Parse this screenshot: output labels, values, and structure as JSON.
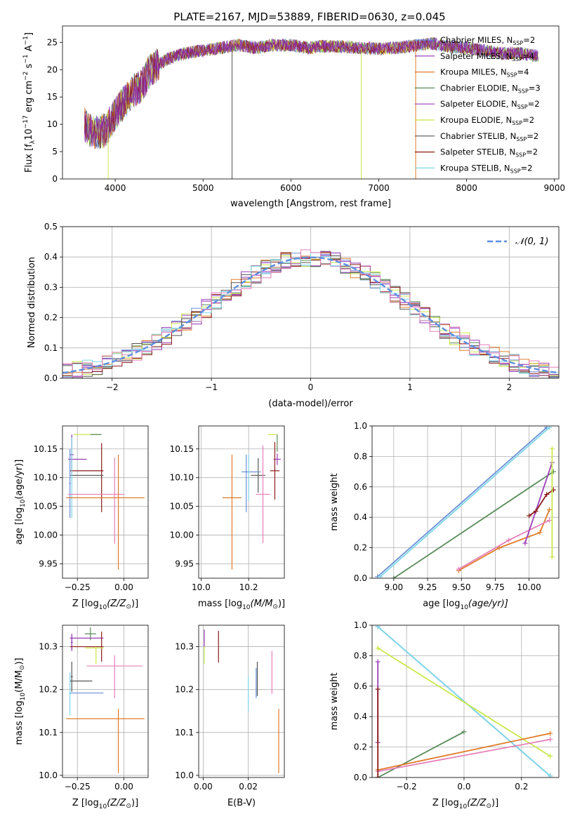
{
  "figure_title": "PLATE=2167, MJD=53889, FIBERID=0630, z=0.045",
  "colors": {
    "Chabrier MILES": "#6b8fd6",
    "Salpeter MILES": "#8c2db5",
    "Kroupa MILES": "#e07b2a",
    "Chabrier ELODIE": "#5a8a5a",
    "Salpeter ELODIE": "#9b3db8",
    "Kroupa ELODIE": "#c8e84a",
    "Chabrier STELIB": "#555555",
    "Salpeter STELIB": "#8b1a1a",
    "Kroupa STELIB": "#7fd7e8",
    "Pink": "#e67fb8",
    "Gaussian": "#5b8ee0"
  },
  "chart_data": [
    {
      "id": "spectrum",
      "type": "line",
      "title": "PLATE=2167, MJD=53889, FIBERID=0630, z=0.045",
      "xlabel": "wavelength [Angstrom, rest frame]",
      "ylabel_parts": [
        "Flux [f",
        "λ",
        "10",
        "−17",
        " erg cm",
        "−2",
        " s",
        "−1",
        " A",
        "−1",
        "]"
      ],
      "xlim": [
        3400,
        9050
      ],
      "ylim": [
        0,
        28
      ],
      "xticks": [
        4000,
        5000,
        6000,
        7000,
        8000,
        9000
      ],
      "yticks": [
        0,
        5,
        10,
        15,
        20,
        25
      ],
      "continuum_x": [
        3650,
        3700,
        3800,
        3900,
        4000,
        4100,
        4200,
        4300,
        4400,
        4500,
        4600,
        4800,
        5000,
        5200,
        5400,
        5600,
        5800,
        6000,
        6200,
        6400,
        6600,
        6800,
        7000,
        7200,
        7400,
        7600,
        7800,
        8000,
        8200,
        8400,
        8600,
        8800
      ],
      "continuum_y": [
        10,
        9,
        8.5,
        9,
        12,
        14,
        16,
        17,
        20,
        21,
        22,
        23,
        23.5,
        24,
        24.5,
        24,
        24.5,
        24.5,
        24,
        24.3,
        24.2,
        24,
        23.8,
        24,
        24.4,
        24.8,
        24.2,
        24,
        23.5,
        23,
        23,
        22.5
      ],
      "legend": [
        {
          "name": "Chabrier MILES, N",
          "sub": "SSP",
          "suffix": "=2",
          "color": "#6b8fd6"
        },
        {
          "name": "Salpeter MILES, N",
          "sub": "SSP",
          "suffix": "=4",
          "color": "#8c2db5"
        },
        {
          "name": "Kroupa MILES, N",
          "sub": "SSP",
          "suffix": "=4",
          "color": "#e07b2a"
        },
        {
          "name": "Chabrier ELODIE, N",
          "sub": "SSP",
          "suffix": "=3",
          "color": "#5a8a5a"
        },
        {
          "name": "Salpeter ELODIE, N",
          "sub": "SSP",
          "suffix": "=2",
          "color": "#9b3db8"
        },
        {
          "name": "Kroupa ELODIE, N",
          "sub": "SSP",
          "suffix": "=2",
          "color": "#c8e84a"
        },
        {
          "name": "Chabrier STELIB, N",
          "sub": "SSP",
          "suffix": "=2",
          "color": "#555555"
        },
        {
          "name": "Salpeter STELIB, N",
          "sub": "SSP",
          "suffix": "=2",
          "color": "#8b1a1a"
        },
        {
          "name": "Kroupa STELIB, N",
          "sub": "SSP",
          "suffix": "=2",
          "color": "#7fd7e8"
        }
      ],
      "spikes": [
        {
          "x": 5330,
          "y": 0,
          "color": "#555555"
        },
        {
          "x": 6800,
          "y": 0,
          "color": "#c8e84a"
        },
        {
          "x": 7420,
          "y": 0,
          "color": "#e07b2a"
        },
        {
          "x": 3920,
          "y": 0,
          "color": "#c8e84a"
        }
      ]
    },
    {
      "id": "residuals",
      "type": "step",
      "xlabel": "(data-model)/error",
      "ylabel": "Normed distribution",
      "xlim": [
        -2.5,
        2.5
      ],
      "ylim": [
        0,
        0.5
      ],
      "xticks": [
        -2,
        -1,
        0,
        1,
        2
      ],
      "xticklabels": [
        "−2",
        "−1",
        "0",
        "1",
        "2"
      ],
      "yticks": [
        0.0,
        0.1,
        0.2,
        0.3,
        0.4,
        0.5
      ],
      "yticklabels": [
        "0.0",
        "0.1",
        "0.2",
        "0.3",
        "0.4",
        "0.5"
      ],
      "legend_label": "𝒩(0, 1)",
      "bin_width": 0.1,
      "series_colors": [
        "#6b8fd6",
        "#8c2db5",
        "#e07b2a",
        "#5a8a5a",
        "#9b3db8",
        "#c8e84a",
        "#555555",
        "#8b1a1a",
        "#7fd7e8",
        "#e67fb8"
      ]
    },
    {
      "id": "age-vs-Z",
      "type": "errorbar",
      "xlabel_parts": [
        "Z [log",
        "10",
        "(Z/Z",
        "⊙",
        ")]"
      ],
      "ylabel_parts": [
        "age  [log",
        "10",
        "(age/yr)]"
      ],
      "xlim": [
        -0.33,
        0.13
      ],
      "ylim": [
        9.925,
        10.19
      ],
      "xticks": [
        -0.25,
        0.0
      ],
      "xticklabels": [
        "−0.25",
        "0.00"
      ],
      "yticks": [
        9.95,
        10.0,
        10.05,
        10.1,
        10.15
      ],
      "yticklabels": [
        "9.95",
        "10.00",
        "10.05",
        "10.10",
        "10.15"
      ],
      "points": [
        {
          "x": -0.2,
          "xerr": 0.07,
          "y": 10.175,
          "yerr": 0.0,
          "color": "#c8e84a"
        },
        {
          "x": -0.15,
          "xerr": 0.03,
          "y": 10.175,
          "yerr": 0.0,
          "color": "#5a8a5a"
        },
        {
          "x": -0.28,
          "xerr": 0.01,
          "y": 10.14,
          "yerr": 0.035,
          "color": "#8c2db5"
        },
        {
          "x": -0.25,
          "xerr": 0.05,
          "y": 10.132,
          "yerr": 0.0,
          "color": "#9b3db8"
        },
        {
          "x": -0.2,
          "xerr": 0.09,
          "y": 10.112,
          "yerr": 0.0,
          "color": "#8b1a1a"
        },
        {
          "x": -0.12,
          "xerr": 0.0,
          "y": 10.1,
          "yerr": 0.06,
          "color": "#8b1a1a"
        },
        {
          "x": -0.2,
          "xerr": 0.09,
          "y": 10.104,
          "yerr": 0.0,
          "color": "#555555"
        },
        {
          "x": -0.29,
          "xerr": 0.005,
          "y": 10.09,
          "yerr": 0.06,
          "color": "#6b8fd6"
        },
        {
          "x": -0.28,
          "xerr": 0.005,
          "y": 10.1,
          "yerr": 0.07,
          "color": "#7fd7e8"
        },
        {
          "x": -0.05,
          "xerr": 0.0,
          "y": 10.06,
          "yerr": 0.075,
          "color": "#e67fb8"
        },
        {
          "x": -0.15,
          "xerr": 0.15,
          "y": 10.071,
          "yerr": 0.0,
          "color": "#e67fb8"
        },
        {
          "x": -0.03,
          "xerr": 0.0,
          "y": 10.04,
          "yerr": 0.1,
          "color": "#e07b2a"
        },
        {
          "x": -0.1,
          "xerr": 0.21,
          "y": 10.065,
          "yerr": 0.0,
          "color": "#e07b2a"
        }
      ]
    },
    {
      "id": "age-vs-mass",
      "type": "errorbar",
      "xlabel_parts": [
        "mass [log",
        "10",
        "(M/M",
        "⊙",
        ")]"
      ],
      "xlim": [
        9.99,
        10.35
      ],
      "ylim": [
        9.925,
        10.19
      ],
      "xticks": [
        10.0,
        10.2
      ],
      "xticklabels": [
        "10.0",
        "10.2"
      ],
      "yticks": [
        9.95,
        10.0,
        10.05,
        10.1,
        10.15
      ],
      "yticklabels": [
        "9.95",
        "10.00",
        "10.05",
        "10.10",
        "10.15"
      ],
      "points": [
        {
          "x": 10.3,
          "xerr": 0.02,
          "y": 10.175,
          "yerr": 0.0,
          "color": "#c8e84a"
        },
        {
          "x": 10.32,
          "xerr": 0.0,
          "y": 10.16,
          "yerr": 0.015,
          "color": "#5a8a5a"
        },
        {
          "x": 10.32,
          "xerr": 0.015,
          "y": 10.132,
          "yerr": 0.01,
          "color": "#9b3db8"
        },
        {
          "x": 10.31,
          "xerr": 0.02,
          "y": 10.112,
          "yerr": 0.05,
          "color": "#8b1a1a"
        },
        {
          "x": 10.24,
          "xerr": 0.03,
          "y": 10.104,
          "yerr": 0.03,
          "color": "#555555"
        },
        {
          "x": 10.19,
          "xerr": 0.0,
          "y": 10.09,
          "yerr": 0.05,
          "color": "#6b8fd6"
        },
        {
          "x": 10.21,
          "xerr": 0.04,
          "y": 10.11,
          "yerr": 0.0,
          "color": "#6b8fd6"
        },
        {
          "x": 10.2,
          "xerr": 0.0,
          "y": 10.1,
          "yerr": 0.04,
          "color": "#7fd7e8"
        },
        {
          "x": 10.26,
          "xerr": 0.03,
          "y": 10.071,
          "yerr": 0.085,
          "color": "#e67fb8"
        },
        {
          "x": 10.13,
          "xerr": 0.04,
          "y": 10.065,
          "yerr": 0.0,
          "color": "#e07b2a"
        },
        {
          "x": 10.13,
          "xerr": 0.0,
          "y": 10.04,
          "yerr": 0.1,
          "color": "#e07b2a"
        }
      ]
    },
    {
      "id": "weight-vs-age",
      "type": "line",
      "xlabel_parts": [
        "age  [log",
        "10",
        "(age/yr)]"
      ],
      "ylabel": "mass weight",
      "xlim": [
        8.84,
        10.22
      ],
      "ylim": [
        0.0,
        1.0
      ],
      "xticks": [
        9.0,
        9.25,
        9.5,
        9.75,
        10.0
      ],
      "xticklabels": [
        "9.00",
        "9.25",
        "9.50",
        "9.75",
        "10.00"
      ],
      "yticks": [
        0.0,
        0.2,
        0.4,
        0.6,
        0.8,
        1.0
      ],
      "yticklabels": [
        "0.0",
        "0.2",
        "0.4",
        "0.6",
        "0.8",
        "1.0"
      ],
      "series": [
        {
          "color": "#6b8fd6",
          "x": [
            8.88,
            10.13
          ],
          "y": [
            0.01,
            0.99
          ]
        },
        {
          "color": "#7fd7e8",
          "x": [
            8.9,
            10.15
          ],
          "y": [
            0.01,
            0.99
          ]
        },
        {
          "color": "#5a8a5a",
          "x": [
            9.0,
            10.18
          ],
          "y": [
            0.0,
            0.7
          ]
        },
        {
          "color": "#e07b2a",
          "x": [
            9.48,
            9.78,
            10.08,
            10.15
          ],
          "y": [
            0.05,
            0.2,
            0.3,
            0.45
          ]
        },
        {
          "color": "#e67fb8",
          "x": [
            9.48,
            9.85,
            10.15
          ],
          "y": [
            0.06,
            0.25,
            0.38
          ]
        },
        {
          "color": "#9b3db8",
          "x": [
            9.97,
            10.17
          ],
          "y": [
            0.23,
            0.76
          ]
        },
        {
          "color": "#8b1a1a",
          "x": [
            10.0,
            10.05,
            10.13,
            10.18
          ],
          "y": [
            0.41,
            0.44,
            0.55,
            0.58
          ]
        },
        {
          "color": "#c8e84a",
          "x": [
            10.17,
            10.17
          ],
          "y": [
            0.14,
            0.85
          ]
        }
      ]
    },
    {
      "id": "mass-vs-Z",
      "type": "errorbar",
      "xlabel_parts": [
        "Z [log",
        "10",
        "(Z/Z",
        "⊙",
        ")]"
      ],
      "ylabel_parts": [
        "mass [log",
        "10",
        "(M/M",
        "⊙",
        ")]"
      ],
      "xlim": [
        -0.33,
        0.13
      ],
      "ylim": [
        9.995,
        10.35
      ],
      "xticks": [
        -0.25,
        0.0
      ],
      "xticklabels": [
        "−0.25",
        "0.00"
      ],
      "yticks": [
        10.0,
        10.1,
        10.2,
        10.3
      ],
      "yticklabels": [
        "10.0",
        "10.1",
        "10.2",
        "10.3"
      ],
      "points": [
        {
          "x": -0.18,
          "xerr": 0.03,
          "y": 10.33,
          "yerr": 0.015,
          "color": "#5a8a5a"
        },
        {
          "x": -0.2,
          "xerr": 0.09,
          "y": 10.32,
          "yerr": 0.0,
          "color": "#9b3db8"
        },
        {
          "x": -0.28,
          "xerr": 0.005,
          "y": 10.31,
          "yerr": 0.02,
          "color": "#8c2db5"
        },
        {
          "x": -0.2,
          "xerr": 0.09,
          "y": 10.3,
          "yerr": 0.0,
          "color": "#8b1a1a"
        },
        {
          "x": -0.12,
          "xerr": 0.0,
          "y": 10.3,
          "yerr": 0.035,
          "color": "#8b1a1a"
        },
        {
          "x": -0.16,
          "xerr": 0.05,
          "y": 10.297,
          "yerr": 0.0,
          "color": "#c8e84a"
        },
        {
          "x": -0.15,
          "xerr": 0.0,
          "y": 10.28,
          "yerr": 0.02,
          "color": "#c8e84a"
        },
        {
          "x": -0.05,
          "xerr": 0.15,
          "y": 10.255,
          "yerr": 0.0,
          "color": "#e67fb8"
        },
        {
          "x": -0.05,
          "xerr": 0.0,
          "y": 10.23,
          "yerr": 0.05,
          "color": "#e67fb8"
        },
        {
          "x": -0.23,
          "xerr": 0.06,
          "y": 10.22,
          "yerr": 0.0,
          "color": "#555555"
        },
        {
          "x": -0.28,
          "xerr": 0.005,
          "y": 10.23,
          "yerr": 0.035,
          "color": "#555555"
        },
        {
          "x": -0.2,
          "xerr": 0.09,
          "y": 10.192,
          "yerr": 0.0,
          "color": "#6b8fd6"
        },
        {
          "x": -0.29,
          "xerr": 0.005,
          "y": 10.19,
          "yerr": 0.05,
          "color": "#7fd7e8"
        },
        {
          "x": -0.1,
          "xerr": 0.21,
          "y": 10.132,
          "yerr": 0.0,
          "color": "#e07b2a"
        },
        {
          "x": -0.03,
          "xerr": 0.0,
          "y": 10.08,
          "yerr": 0.075,
          "color": "#e07b2a"
        }
      ]
    },
    {
      "id": "mass-vs-EBV",
      "type": "errorbar",
      "xlabel": "E(B-V)",
      "xlim": [
        -0.002,
        0.036
      ],
      "ylim": [
        9.995,
        10.35
      ],
      "xticks": [
        0.0,
        0.02
      ],
      "xticklabels": [
        "0.00",
        "0.02"
      ],
      "yticks": [
        10.0,
        10.1,
        10.2,
        10.3
      ],
      "yticklabels": [
        "10.0",
        "10.1",
        "10.2",
        "10.3"
      ],
      "points": [
        {
          "x": 0.0005,
          "xerr": 0.0,
          "y": 10.32,
          "yerr": 0.02,
          "color": "#9b3db8"
        },
        {
          "x": 0.0005,
          "xerr": 0.0,
          "y": 10.28,
          "yerr": 0.02,
          "color": "#c8e84a"
        },
        {
          "x": 0.0068,
          "xerr": 0.0,
          "y": 10.3,
          "yerr": 0.037,
          "color": "#8b1a1a"
        },
        {
          "x": 0.024,
          "xerr": 0.0,
          "y": 10.225,
          "yerr": 0.04,
          "color": "#555555"
        },
        {
          "x": 0.0235,
          "xerr": 0.0,
          "y": 10.215,
          "yerr": 0.035,
          "color": "#6b8fd6"
        },
        {
          "x": 0.02,
          "xerr": 0.0,
          "y": 10.19,
          "yerr": 0.04,
          "color": "#7fd7e8"
        },
        {
          "x": 0.0305,
          "xerr": 0.0,
          "y": 10.24,
          "yerr": 0.05,
          "color": "#e67fb8"
        },
        {
          "x": 0.0335,
          "xerr": 0.0,
          "y": 10.08,
          "yerr": 0.075,
          "color": "#e07b2a"
        }
      ]
    },
    {
      "id": "weight-vs-Z",
      "type": "line",
      "xlabel_parts": [
        "Z [log",
        "10",
        "(Z/Z",
        "⊙",
        ")]"
      ],
      "ylabel": "mass weight",
      "xlim": [
        -0.32,
        0.33
      ],
      "ylim": [
        0.0,
        1.0
      ],
      "xticks": [
        -0.2,
        0.0,
        0.2
      ],
      "xticklabels": [
        "−0.2",
        "0.0",
        "0.2"
      ],
      "yticks": [
        0.0,
        0.2,
        0.4,
        0.6,
        0.8,
        1.0
      ],
      "yticklabels": [
        "0.0",
        "0.2",
        "0.4",
        "0.6",
        "0.8",
        "1.0"
      ],
      "series": [
        {
          "color": "#6b8fd6",
          "x": [
            -0.3,
            0.3
          ],
          "y": [
            0.99,
            0.01
          ]
        },
        {
          "color": "#7fd7e8",
          "x": [
            -0.3,
            0.3
          ],
          "y": [
            0.99,
            0.01
          ]
        },
        {
          "color": "#c8e84a",
          "x": [
            -0.3,
            0.3
          ],
          "y": [
            0.85,
            0.14
          ]
        },
        {
          "color": "#5a8a5a",
          "x": [
            -0.3,
            0.0
          ],
          "y": [
            0.0,
            0.3
          ]
        },
        {
          "color": "#e07b2a",
          "x": [
            -0.3,
            0.3
          ],
          "y": [
            0.05,
            0.29
          ]
        },
        {
          "color": "#e67fb8",
          "x": [
            -0.3,
            0.3
          ],
          "y": [
            0.04,
            0.25
          ]
        },
        {
          "color": "#9b3db8",
          "x": [
            -0.3,
            -0.3
          ],
          "y": [
            0.23,
            0.76
          ]
        },
        {
          "color": "#8b1a1a",
          "x": [
            -0.3,
            -0.3
          ],
          "y": [
            0.0,
            0.58
          ]
        }
      ]
    }
  ]
}
